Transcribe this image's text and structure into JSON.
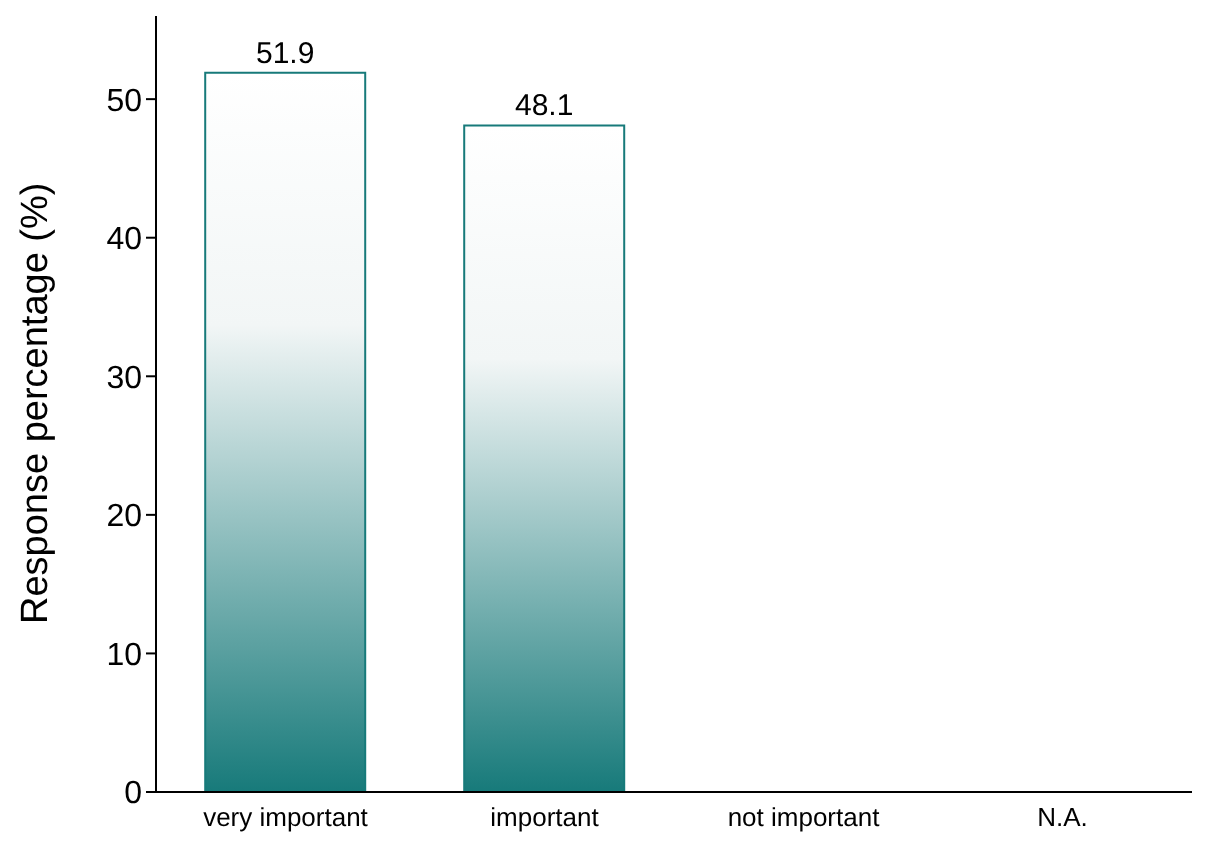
{
  "chart_data": {
    "type": "bar",
    "ylabel": "Response percentage (%)",
    "categories": [
      "very important",
      "important",
      "not important",
      "N.A."
    ],
    "values": [
      51.9,
      48.1,
      0,
      0
    ],
    "value_labels": [
      "51.9",
      "48.1",
      null,
      null
    ],
    "color": "#177a7a",
    "ylim": [
      0,
      56
    ],
    "yticks": [
      0,
      10,
      20,
      30,
      40,
      50
    ],
    "grid": false,
    "legend": false
  }
}
